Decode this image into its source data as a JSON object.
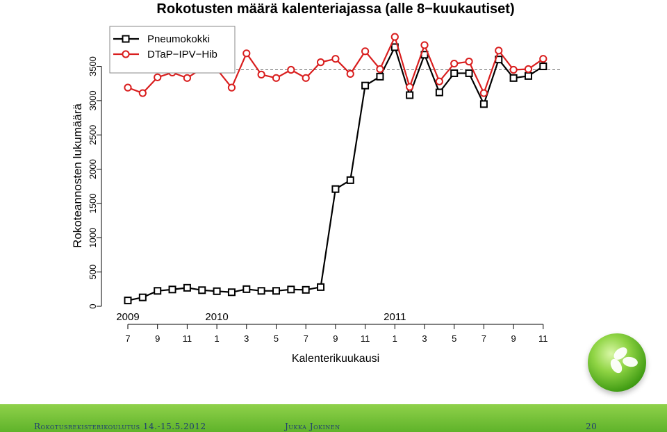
{
  "chart_data": {
    "type": "line",
    "title": "Rokotusten määrä kalenteriajassa (alle 8−kuukautiset)",
    "xlabel": "Kalenterikuukausi",
    "ylabel": "Rokoteannosten lukumäärä",
    "ylim": [
      0,
      3600
    ],
    "yticks": [
      "0",
      "500",
      "1000",
      "1500",
      "2000",
      "2500",
      "3000",
      "3500"
    ],
    "month_ticks": [
      "7",
      "9",
      "11",
      "1",
      "3",
      "5",
      "7",
      "9",
      "11",
      "1",
      "3",
      "5",
      "7",
      "9",
      "11"
    ],
    "year_labels": [
      {
        "label": "2009",
        "month_index": 0
      },
      {
        "label": "2010",
        "month_index": 6
      },
      {
        "label": "2011",
        "month_index": 18
      }
    ],
    "reference_line": 3450,
    "legend_position": "top-left",
    "series": [
      {
        "name": "Pneumokokki",
        "color": "#000000",
        "marker": "square",
        "values": [
          85,
          130,
          225,
          245,
          270,
          235,
          220,
          205,
          250,
          225,
          225,
          245,
          240,
          280,
          1710,
          1840,
          3220,
          3350,
          3780,
          3080,
          3670,
          3120,
          3400,
          3400,
          2950,
          3600,
          3330,
          3360,
          3500
        ]
      },
      {
        "name": "DTaP−IPV−Hib",
        "color": "#d91e1e",
        "marker": "circle",
        "values": [
          3190,
          3110,
          3340,
          3410,
          3330,
          3470,
          3460,
          3190,
          3690,
          3380,
          3330,
          3450,
          3330,
          3560,
          3610,
          3390,
          3720,
          3460,
          3930,
          3200,
          3810,
          3280,
          3540,
          3570,
          3110,
          3730,
          3450,
          3460,
          3610
        ]
      }
    ]
  },
  "footer": {
    "left": "Rokotusrekisterikoulutus 14.-15.5.2012",
    "center": "Jukka Jokinen",
    "page": "20"
  },
  "logo": {
    "icon": "clover-logo-icon"
  }
}
